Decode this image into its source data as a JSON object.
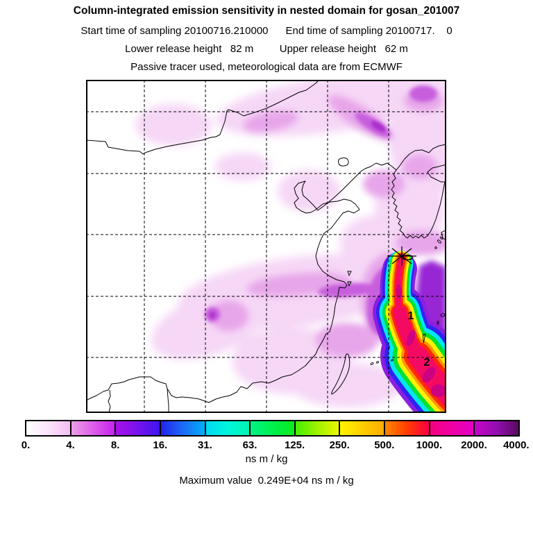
{
  "header": {
    "title": "Column-integrated emission sensitivity in nested domain for gosan_201007",
    "sampling_line": "Start time of sampling 20100716.210000      End time of sampling 20100717.    0",
    "release_line": "Lower release height   82 m         Upper release height   62 m",
    "tracer_line": "Passive tracer used, meteorological data are from ECMWF"
  },
  "map": {
    "markers": [
      {
        "label": "1"
      },
      {
        "label": "2"
      }
    ],
    "release_marker": "asterisk-star at Gosan (Jeju island)",
    "gridlines": {
      "vertical": 5,
      "horizontal": 5,
      "style": "dashed"
    }
  },
  "colorbar": {
    "units": "ns m / kg",
    "tick_labels": [
      "0.",
      "4.",
      "8.",
      "16.",
      "31.",
      "63.",
      "125.",
      "250.",
      "500.",
      "1000.",
      "2000.",
      "4000."
    ],
    "segments": [
      [
        "#FFFFFF",
        "#FBE4FB",
        "#F3BCF0"
      ],
      [
        "#EC9FE8",
        "#DD5FE8",
        "#C623EE"
      ],
      [
        "#A911E9",
        "#7713EC",
        "#3E14EE"
      ],
      [
        "#2023EE",
        "#1E6AF5",
        "#00AEF8"
      ],
      [
        "#00D9F2",
        "#00F5DC",
        "#00F5B2"
      ],
      [
        "#00F287",
        "#00EF4F",
        "#0AEC1A"
      ],
      [
        "#45EE00",
        "#9EF200",
        "#EEF600"
      ],
      [
        "#FFF400",
        "#FFCF00",
        "#FFAC00"
      ],
      [
        "#FF8800",
        "#FF3C00",
        "#FA0045"
      ],
      [
        "#F6007E",
        "#EE00A5",
        "#E300C5"
      ],
      [
        "#C505C9",
        "#930FB0",
        "#57095E"
      ]
    ]
  },
  "footer": {
    "max_value_line": "Maximum value  0.249E+04 ns m / kg"
  },
  "chart_data": {
    "type": "heatmap",
    "title": "Column-integrated emission sensitivity in nested domain for gosan_201007",
    "station_id": "gosan_201007",
    "start_time_of_sampling": "20100716.210000",
    "end_time_of_sampling": "20100717.    0",
    "lower_release_height_m": 82,
    "upper_release_height_m": 62,
    "tracer": "Passive tracer used, meteorological data are from ECMWF",
    "units": "ns m / kg",
    "maximum_value": "0.249E+04",
    "colorbar_levels": [
      0,
      4,
      8,
      16,
      31,
      63,
      125,
      250,
      500,
      1000,
      2000,
      4000
    ],
    "legend_position": "bottom",
    "grid": "dashed lat/lon graticule, 5 vertical x 5 horizontal lines",
    "plume_description": "High-sensitivity rainbow plume (crimson core > 1000 ns m/kg) extending SSE from release star on Jeju toward bottom-right corner; trajectory points 1 and 2 on plume; broad faint purple (1-16 ns m/kg) sensitivity over Yellow Sea, central/eastern China, Korea and NE China",
    "band_colors_inner_to_outer": [
      "#F40A62",
      "#FF2A00",
      "#FF9800",
      "#FFF200",
      "#00E132",
      "#00E6F5",
      "#3023F2",
      "#8A1FE0"
    ],
    "shading_colors_light_to_dark": [
      "#F6D7F6",
      "#E7A6EA",
      "#C75EDD",
      "#9926D4"
    ]
  }
}
